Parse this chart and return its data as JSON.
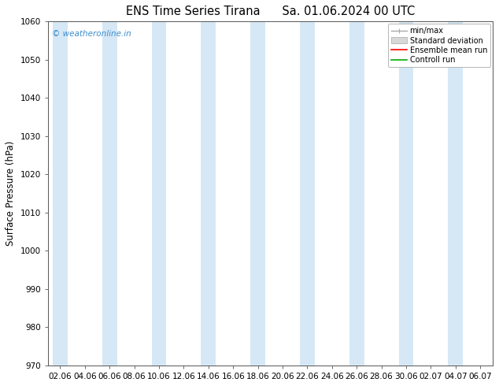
{
  "title": "ENS Time Series Tirana",
  "title2": "Sa. 01.06.2024 00 UTC",
  "ylabel": "Surface Pressure (hPa)",
  "ylim": [
    970,
    1060
  ],
  "yticks": [
    970,
    980,
    990,
    1000,
    1010,
    1020,
    1030,
    1040,
    1050,
    1060
  ],
  "xtick_labels": [
    "02.06",
    "04.06",
    "06.06",
    "08.06",
    "10.06",
    "12.06",
    "14.06",
    "16.06",
    "18.06",
    "20.06",
    "22.06",
    "24.06",
    "26.06",
    "28.06",
    "30.06",
    "02.07",
    "04.07",
    "06.07"
  ],
  "band_color": "#d6e8f5",
  "background_color": "#ffffff",
  "watermark": "© weatheronline.in",
  "watermark_color": "#3b8ed0",
  "legend_labels": [
    "min/max",
    "Standard deviation",
    "Ensemble mean run",
    "Controll run"
  ],
  "legend_colors": [
    "#aaaaaa",
    "#cccccc",
    "#ff0000",
    "#00aa00"
  ],
  "title_fontsize": 10.5,
  "axis_fontsize": 7.5,
  "ylabel_fontsize": 8.5,
  "spine_color": "#555555"
}
